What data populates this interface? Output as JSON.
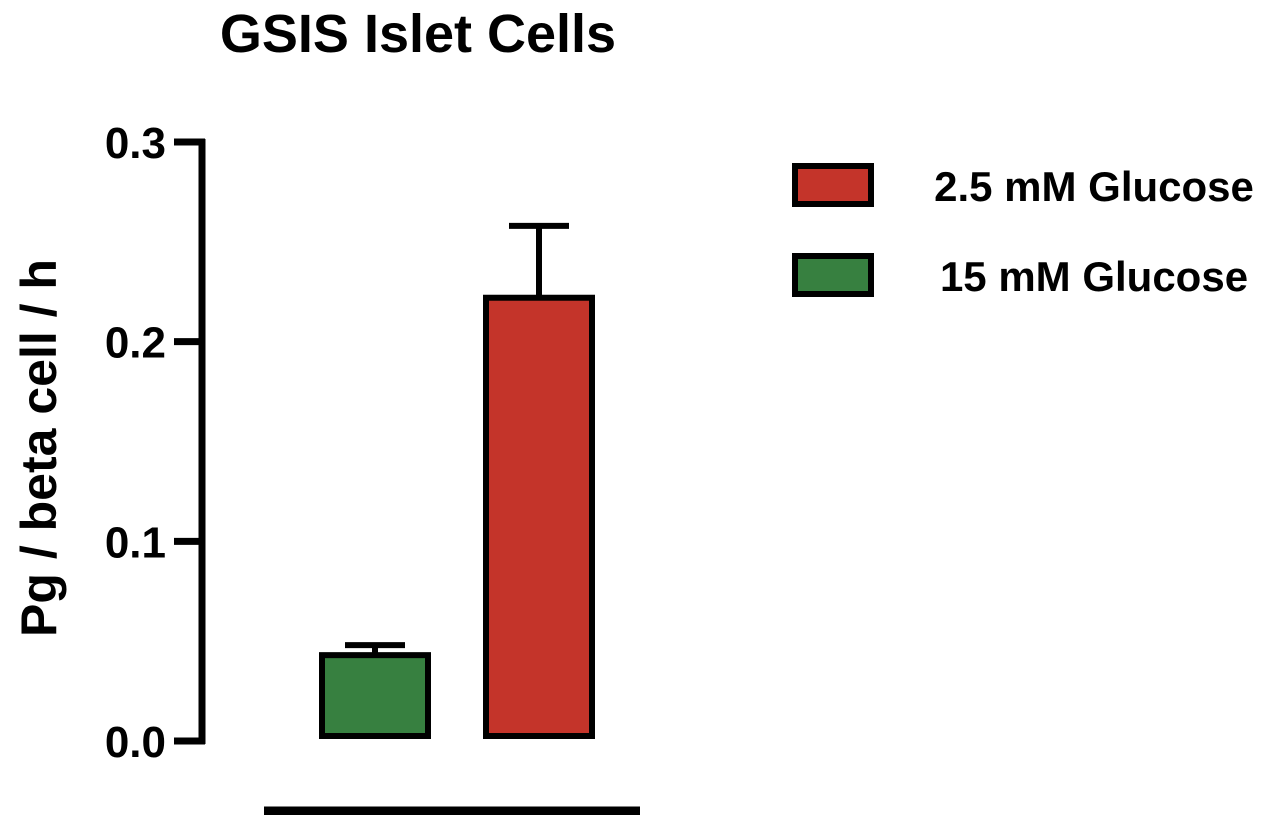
{
  "chart_data": {
    "type": "bar",
    "title": "GSIS Islet Cells",
    "xlabel": "",
    "ylabel": "Pg / beta cell / h",
    "ylim": [
      0,
      0.3
    ],
    "yticks": [
      {
        "value": 0.0,
        "label": "0.0"
      },
      {
        "value": 0.1,
        "label": "0.1"
      },
      {
        "value": 0.2,
        "label": "0.2"
      },
      {
        "value": 0.3,
        "label": "0.3"
      }
    ],
    "grid": false,
    "legend_position": "top-right",
    "series": [
      {
        "name": "15 mM Glucose",
        "value": 0.043,
        "error": 0.005,
        "color": "#378040"
      },
      {
        "name": "2.5 mM Glucose",
        "value": 0.222,
        "error": 0.036,
        "color": "#c4342a"
      }
    ],
    "legend": [
      {
        "label": "2.5 mM Glucose",
        "color": "#c4342a"
      },
      {
        "label": "15 mM Glucose",
        "color": "#378040"
      }
    ]
  }
}
